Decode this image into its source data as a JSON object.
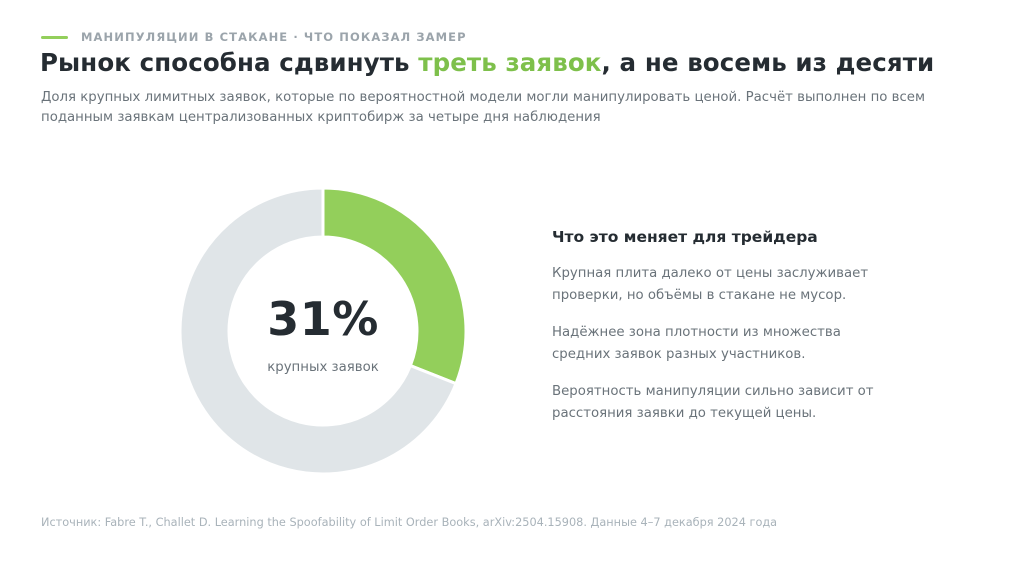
{
  "header": {
    "eyebrow": "МАНИПУЛЯЦИИ В СТАКАНЕ · ЧТО ПОКАЗАЛ ЗАМЕР",
    "title_prefix": "Рынок способна сдвинуть ",
    "title_accent": "треть заявок",
    "title_suffix": ", а не восемь из десяти",
    "subtitle": "Доля крупных лимитных заявок, которые по вероятностной модели могли манипулировать ценой. Расчёт выполнен по всем поданным заявкам централизованных криптобирж за четыре дня наблюдения"
  },
  "chart_data": {
    "type": "pie",
    "style": "donut",
    "slices": [
      {
        "value": 31,
        "color": "#93cf5b"
      },
      {
        "value": 69,
        "color": "#e0e5e8"
      }
    ],
    "center_value": "31%",
    "center_label": "крупных заявок"
  },
  "side": {
    "heading": "Что это меняет для трейдера",
    "points": [
      "Крупная плита далеко от цены заслуживает проверки, но объёмы в стакане не мусор.",
      "Надёжнее зона плотности из множества средних заявок разных участников.",
      "Вероятность манипуляции сильно зависит от расстояния заявки до текущей цены."
    ]
  },
  "footer": {
    "source": "Источник: Fabre T., Challet D. Learning the Spoofability of Limit Order Books, arXiv:2504.15908. Данные 4–7 декабря 2024 года"
  },
  "colors": {
    "accent": "#7ec04b",
    "donut_fill": "#93cf5b",
    "donut_track": "#e0e5e8",
    "text_dark": "#252c32",
    "text_muted": "#6a737a"
  }
}
